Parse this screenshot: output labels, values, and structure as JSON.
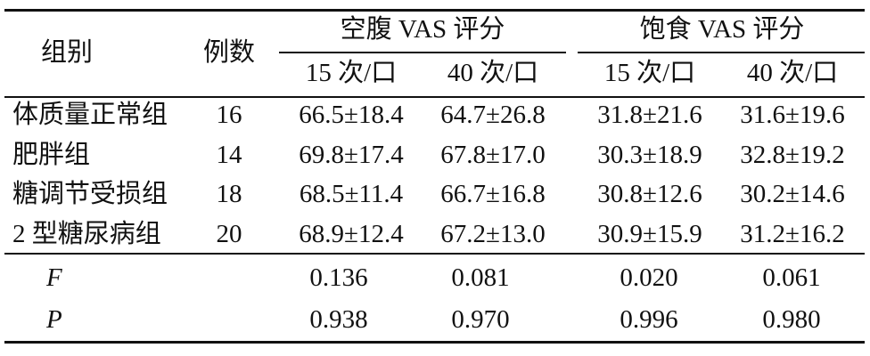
{
  "table": {
    "header": {
      "group": "组别",
      "count": "例数",
      "fasting": "空腹 VAS 评分",
      "fed": "饱食 VAS 评分",
      "sub": [
        "15 次/口",
        "40 次/口",
        "15 次/口",
        "40 次/口"
      ]
    },
    "rows": [
      {
        "group": "体质量正常组",
        "count": "16",
        "values": [
          "66.5±18.4",
          "64.7±26.8",
          "31.8±21.6",
          "31.6±19.6"
        ]
      },
      {
        "group": "肥胖组",
        "count": "14",
        "values": [
          "69.8±17.4",
          "67.8±17.0",
          "30.3±18.9",
          "32.8±19.2"
        ]
      },
      {
        "group": "糖调节受损组",
        "count": "18",
        "values": [
          "68.5±11.4",
          "66.7±16.8",
          "30.8±12.6",
          "30.2±14.6"
        ]
      },
      {
        "group": "2 型糖尿病组",
        "count": "20",
        "values": [
          "68.9±12.4",
          "67.2±13.0",
          "30.9±15.9",
          "31.2±16.2"
        ]
      }
    ],
    "stats": [
      {
        "label": "F",
        "values": [
          "0.136",
          "0.081",
          "0.020",
          "0.061"
        ]
      },
      {
        "label": "P",
        "values": [
          "0.938",
          "0.970",
          "0.996",
          "0.980"
        ]
      }
    ]
  }
}
